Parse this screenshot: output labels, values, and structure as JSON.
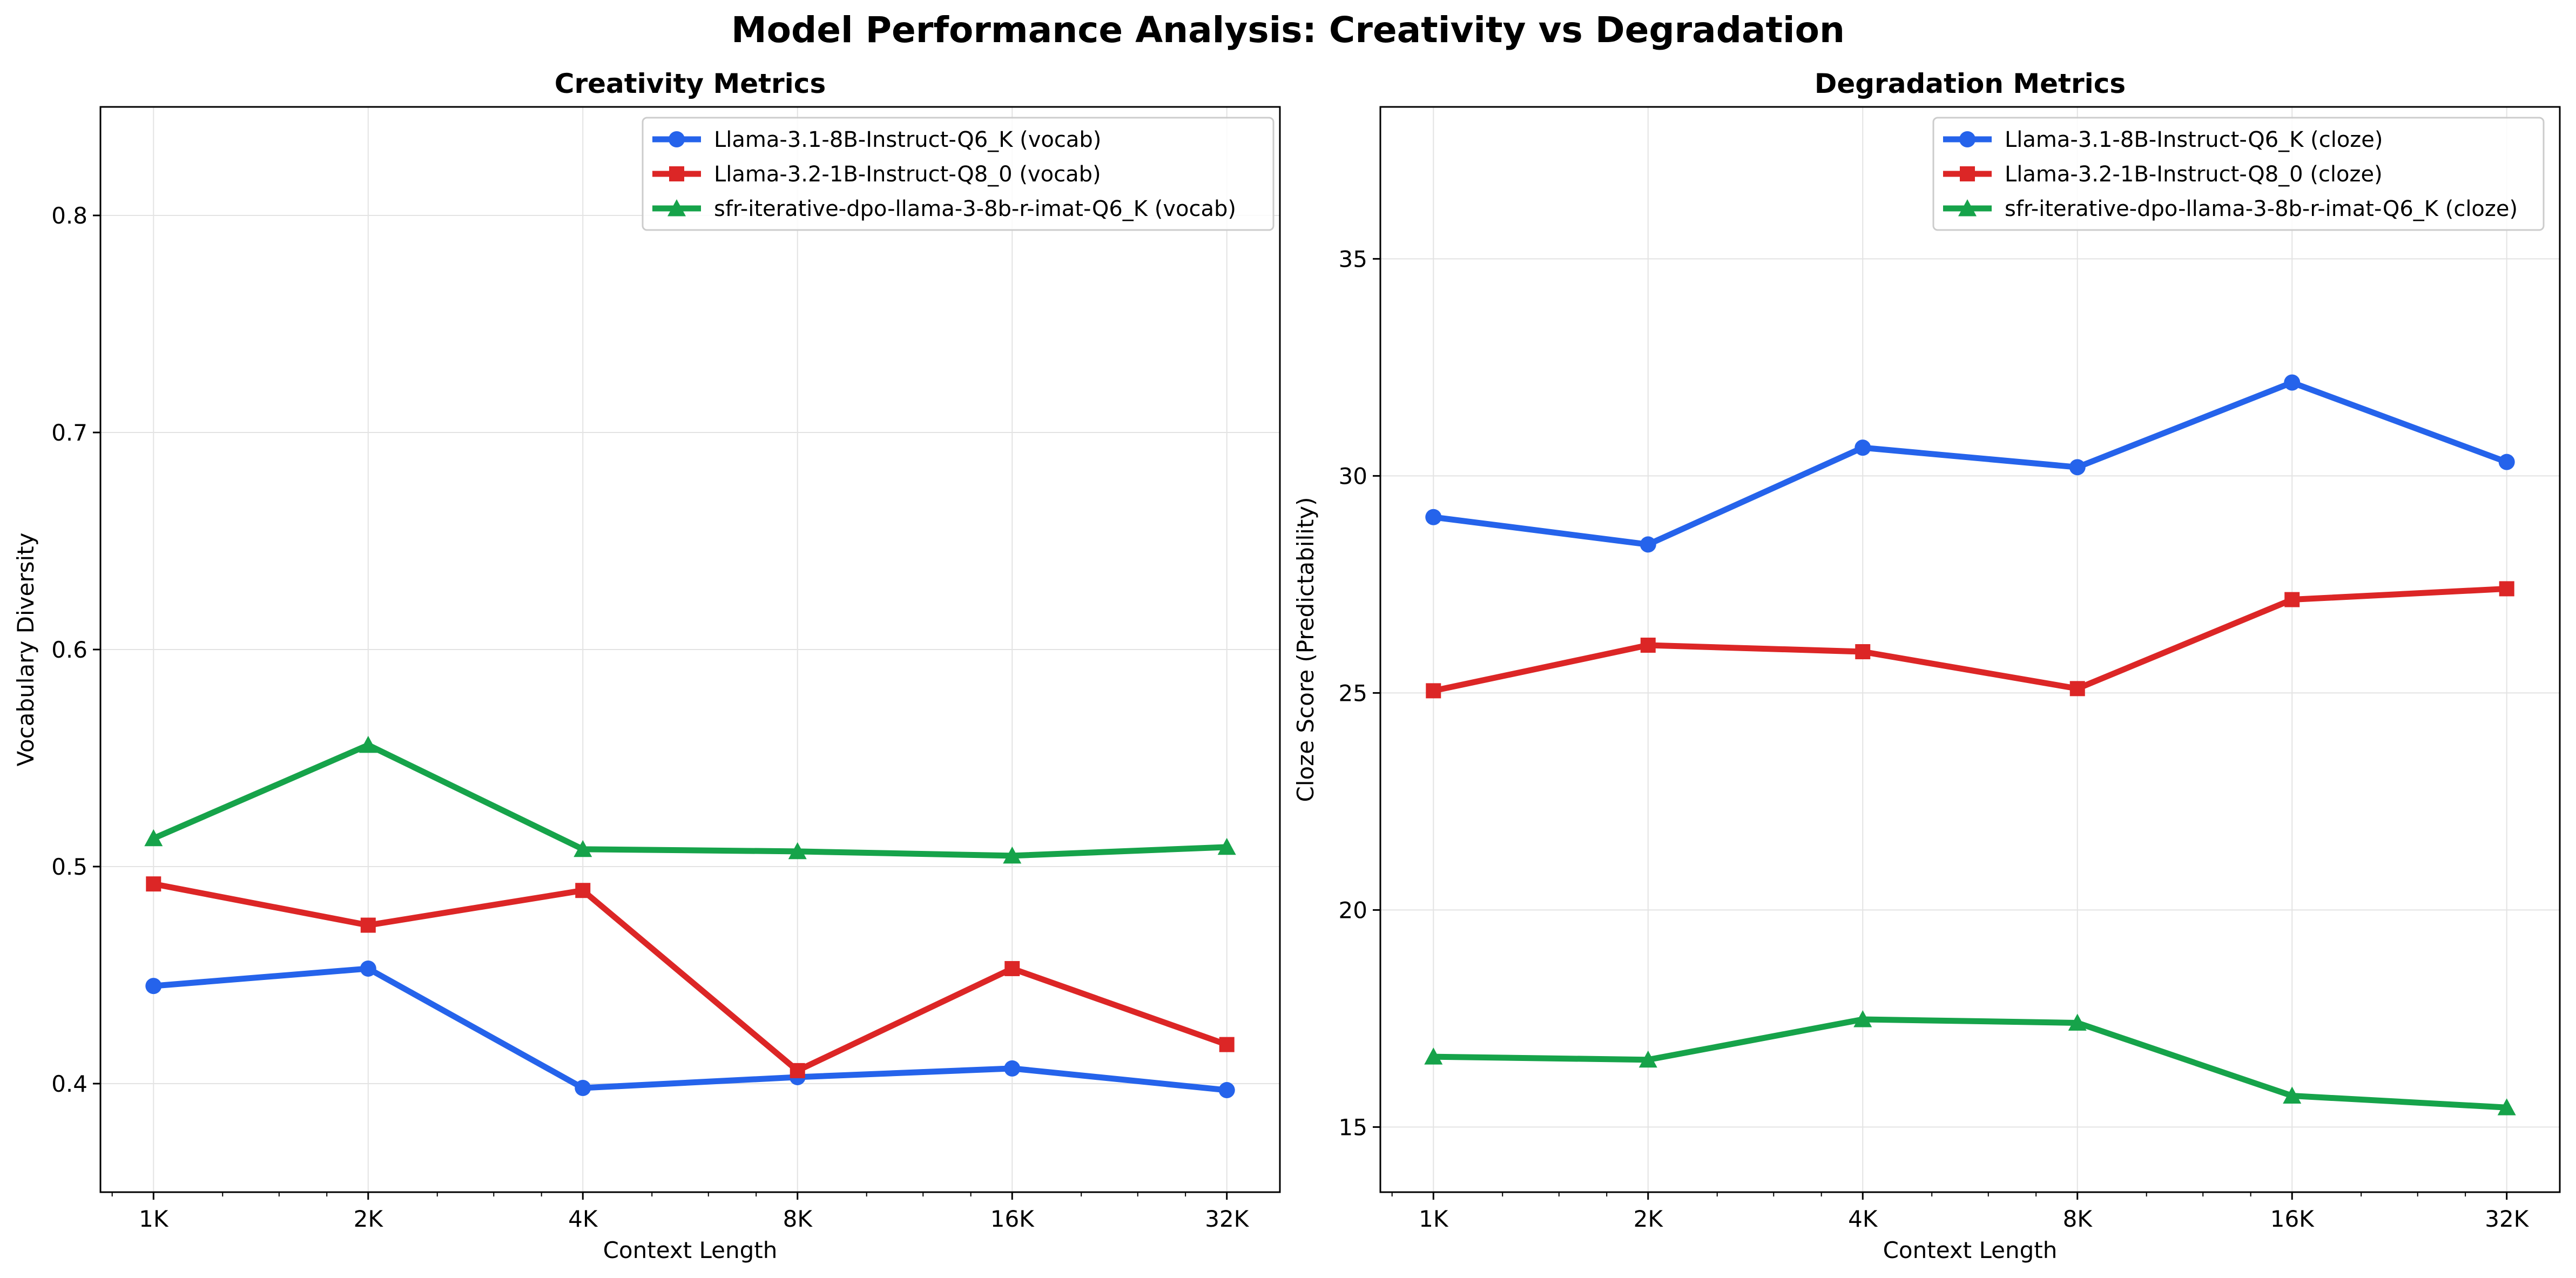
{
  "figure": {
    "title": "Model Performance Analysis: Creativity vs Degradation"
  },
  "chart_data": [
    {
      "type": "line",
      "title": "Creativity Metrics",
      "xlabel": "Context Length",
      "ylabel": "Vocabulary Diversity",
      "x_scale": "log2",
      "categories": [
        "1K",
        "2K",
        "4K",
        "8K",
        "16K",
        "32K"
      ],
      "ylim": [
        0.35,
        0.85
      ],
      "yticks": [
        "0.4",
        "0.5",
        "0.6",
        "0.7",
        "0.8"
      ],
      "grid": true,
      "legend_position": "top-right",
      "series": [
        {
          "name": "Llama-3.1-8B-Instruct-Q6_K (vocab)",
          "color": "#2563eb",
          "marker": "circle",
          "values": [
            0.445,
            0.453,
            0.398,
            0.403,
            0.407,
            0.397
          ]
        },
        {
          "name": "Llama-3.2-1B-Instruct-Q8_0 (vocab)",
          "color": "#dc2626",
          "marker": "square",
          "values": [
            0.492,
            0.473,
            0.489,
            0.406,
            0.453,
            0.418
          ]
        },
        {
          "name": "sfr-iterative-dpo-llama-3-8b-r-imat-Q6_K (vocab)",
          "color": "#16a34a",
          "marker": "triangle",
          "values": [
            0.513,
            0.556,
            0.508,
            0.507,
            0.505,
            0.509
          ]
        }
      ]
    },
    {
      "type": "line",
      "title": "Degradation Metrics",
      "xlabel": "Context Length",
      "ylabel": "Cloze Score (Predictability)",
      "x_scale": "log2",
      "categories": [
        "1K",
        "2K",
        "4K",
        "8K",
        "16K",
        "32K"
      ],
      "ylim": [
        13.5,
        38.5
      ],
      "yticks": [
        "15",
        "20",
        "25",
        "30",
        "35"
      ],
      "grid": true,
      "legend_position": "top-right",
      "series": [
        {
          "name": "Llama-3.1-8B-Instruct-Q6_K (cloze)",
          "color": "#2563eb",
          "marker": "circle",
          "values": [
            29.05,
            28.42,
            30.65,
            30.2,
            32.15,
            30.32
          ]
        },
        {
          "name": "Llama-3.2-1B-Instruct-Q8_0 (cloze)",
          "color": "#dc2626",
          "marker": "square",
          "values": [
            25.05,
            26.1,
            25.95,
            25.1,
            27.15,
            27.4
          ]
        },
        {
          "name": "sfr-iterative-dpo-llama-3-8b-r-imat-Q6_K (cloze)",
          "color": "#16a34a",
          "marker": "triangle",
          "values": [
            16.62,
            16.55,
            17.48,
            17.4,
            15.72,
            15.45
          ]
        }
      ]
    }
  ]
}
